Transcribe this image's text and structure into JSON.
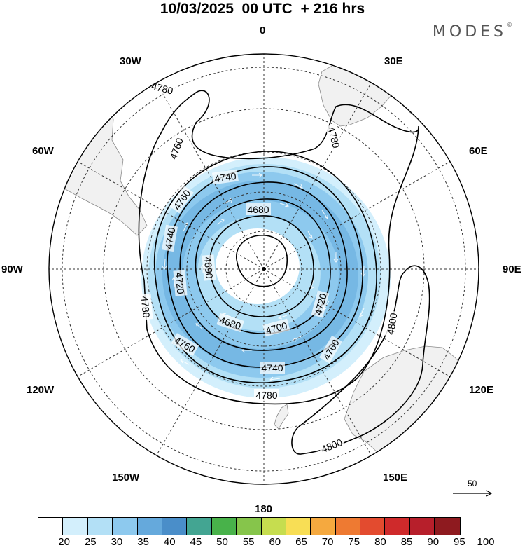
{
  "title": "10/03/2025  00 UTC  + 216 hrs",
  "brand": {
    "text": "MODES",
    "mark": "©"
  },
  "meridian_labels": {
    "top": "0",
    "right": "90E",
    "bottom": "180",
    "left": "90W",
    "w30": "30W",
    "e30": "30E",
    "w60": "60W",
    "e60": "60E",
    "w120": "120W",
    "e120": "120E",
    "w150": "150W",
    "e150": "150E"
  },
  "contours": [
    "4680",
    "4690",
    "4700",
    "4720",
    "4740",
    "4760",
    "4780",
    "4800"
  ],
  "contour_labels": {
    "c4780_nw": "4780",
    "c4780_ne": "4780",
    "c4760_nw": "4760",
    "c4740_n": "4740",
    "c4760_w": "4760",
    "c4680_n": "4680",
    "c4740_w": "4740",
    "c4690_w": "4690",
    "c4720_w": "4720",
    "c4780_w": "4780",
    "c4720_e": "4720",
    "c4680_s": "4680",
    "c4700_s": "4700",
    "c4760_s": "4760",
    "c4760_se": "4760",
    "c4740_s": "4740",
    "c4780_s": "4780",
    "c4800_e": "4800",
    "c4800_s": "4800"
  },
  "wind_reference": {
    "label": "50"
  },
  "colorbar": {
    "ticks": [
      "20",
      "25",
      "30",
      "35",
      "40",
      "45",
      "50",
      "55",
      "60",
      "65",
      "70",
      "75",
      "80",
      "85",
      "90",
      "95",
      "100"
    ],
    "colors": [
      "#ffffff",
      "#d3effc",
      "#b3e0f6",
      "#8dc9ee",
      "#65a9dc",
      "#4a8ec9",
      "#43a592",
      "#48b24a",
      "#86c54b",
      "#c6dd4f",
      "#f8de55",
      "#f5a93f",
      "#ee7a32",
      "#e34b2f",
      "#cf2a2b",
      "#b71f2b",
      "#8e1a1f"
    ]
  }
}
